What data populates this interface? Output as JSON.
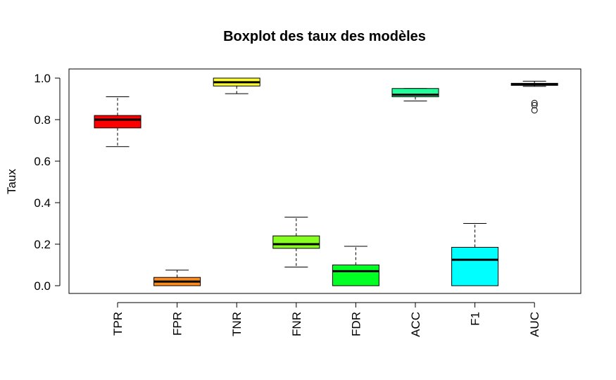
{
  "chart_data": {
    "type": "boxplot",
    "title": "Boxplot des taux des modèles",
    "xlabel": "",
    "ylabel": "Taux",
    "ylim": [
      0.0,
      1.0
    ],
    "yticks": [
      "0.0",
      "0.2",
      "0.4",
      "0.6",
      "0.8",
      "1.0"
    ],
    "grid": false,
    "categories": [
      "TPR",
      "FPR",
      "TNR",
      "FNR",
      "FDR",
      "ACC",
      "F1",
      "AUC"
    ],
    "boxes": [
      {
        "name": "TPR",
        "color": "#ff0000",
        "whisker_low": 0.67,
        "q1": 0.76,
        "median": 0.8,
        "q3": 0.82,
        "whisker_high": 0.91,
        "outliers": []
      },
      {
        "name": "FPR",
        "color": "#ff8c1a",
        "whisker_low": 0.0,
        "q1": 0.0,
        "median": 0.02,
        "q3": 0.04,
        "whisker_high": 0.075,
        "outliers": []
      },
      {
        "name": "TNR",
        "color": "#ffff33",
        "whisker_low": 0.925,
        "q1": 0.962,
        "median": 0.98,
        "q3": 1.0,
        "whisker_high": 1.0,
        "outliers": []
      },
      {
        "name": "FNR",
        "color": "#88ff22",
        "whisker_low": 0.09,
        "q1": 0.18,
        "median": 0.2,
        "q3": 0.24,
        "whisker_high": 0.33,
        "outliers": []
      },
      {
        "name": "FDR",
        "color": "#00ff22",
        "whisker_low": 0.0,
        "q1": 0.0,
        "median": 0.07,
        "q3": 0.1,
        "whisker_high": 0.19,
        "outliers": []
      },
      {
        "name": "ACC",
        "color": "#22ff99",
        "whisker_low": 0.89,
        "q1": 0.91,
        "median": 0.92,
        "q3": 0.95,
        "whisker_high": 0.95,
        "outliers": []
      },
      {
        "name": "F1",
        "color": "#00ffff",
        "whisker_low": 0.0,
        "q1": 0.0,
        "median": 0.125,
        "q3": 0.185,
        "whisker_high": 0.3,
        "outliers": []
      },
      {
        "name": "AUC",
        "color": "#00ccff",
        "whisker_low": 0.96,
        "q1": 0.965,
        "median": 0.97,
        "q3": 0.975,
        "whisker_high": 0.985,
        "outliers": [
          0.88,
          0.87,
          0.845
        ]
      }
    ]
  }
}
